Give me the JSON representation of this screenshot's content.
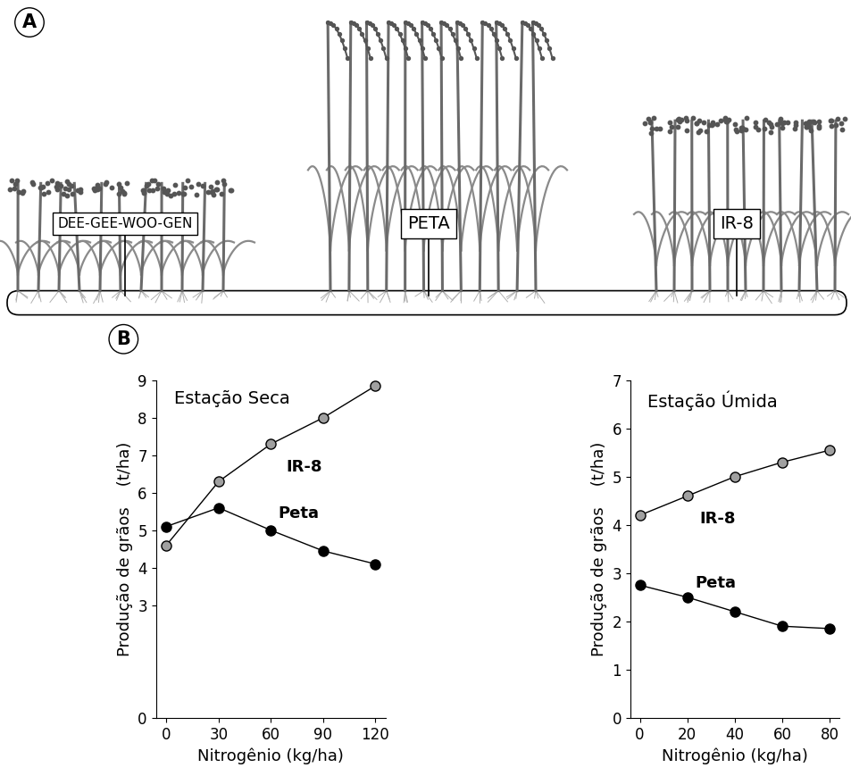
{
  "panel_labels": [
    "A",
    "B"
  ],
  "illustration": {
    "labels": [
      "DEE-GEE-WOO-GEN",
      "PETA",
      "IR-8"
    ]
  },
  "chart_data": [
    {
      "type": "line",
      "title": "Estação Seca",
      "x": [
        0,
        30,
        60,
        90,
        120
      ],
      "series": [
        {
          "name": "IR-8",
          "color": "#a0a0a0",
          "marker": "o",
          "values": [
            4.6,
            6.3,
            7.3,
            8.0,
            8.85
          ]
        },
        {
          "name": "Peta",
          "color": "#000000",
          "marker": "o",
          "values": [
            5.1,
            5.6,
            5.0,
            4.45,
            4.1
          ]
        }
      ],
      "x_label": "Nitrogênio (kg/ha)",
      "y_label": "Produção de grãos    (t/ha)",
      "xlim": [
        -6,
        126
      ],
      "ylim": [
        0,
        9
      ],
      "xticks": [
        0,
        30,
        60,
        90,
        120
      ],
      "yticks": [
        0,
        3,
        4,
        5,
        6,
        7,
        8,
        9
      ]
    },
    {
      "type": "line",
      "title": "Estação Úmida",
      "x": [
        0,
        20,
        40,
        60,
        80
      ],
      "series": [
        {
          "name": "IR-8",
          "color": "#a0a0a0",
          "marker": "o",
          "values": [
            4.2,
            4.6,
            5.0,
            5.3,
            5.55
          ]
        },
        {
          "name": "Peta",
          "color": "#000000",
          "marker": "o",
          "values": [
            2.75,
            2.5,
            2.2,
            1.9,
            1.85
          ]
        }
      ],
      "x_label": "Nitrogênio (kg/ha)",
      "y_label": "Produção de grãos    (t/ha)",
      "xlim": [
        -4,
        84
      ],
      "ylim": [
        0,
        7
      ],
      "xticks": [
        0,
        20,
        40,
        60,
        80
      ],
      "yticks": [
        0,
        1,
        2,
        3,
        4,
        5,
        6,
        7
      ]
    }
  ]
}
